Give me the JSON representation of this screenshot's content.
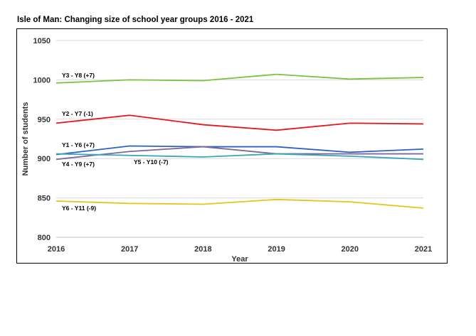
{
  "title": "Isle of Man: Changing size of school year groups 2016 - 2021",
  "chart_data": {
    "type": "line",
    "title": "Isle of Man: Changing size of school year groups 2016 - 2021",
    "xlabel": "Year",
    "ylabel": "Number of students",
    "x": [
      "2016",
      "2017",
      "2018",
      "2019",
      "2020",
      "2021"
    ],
    "ylim": [
      800,
      1050
    ],
    "yticks": [
      800,
      850,
      900,
      950,
      1000,
      1050
    ],
    "grid": true,
    "series": [
      {
        "name": "Y3 - Y8 (+7)",
        "color": "#7dc242",
        "values": [
          996,
          1000,
          999,
          1007,
          1001,
          1003
        ]
      },
      {
        "name": "Y2 - Y7 (-1)",
        "color": "#e8161b",
        "values": [
          945,
          955,
          943,
          936,
          945,
          944
        ]
      },
      {
        "name": "Y1 - Y6 (+7)",
        "color": "#2e5fc9",
        "values": [
          905,
          916,
          915,
          915,
          908,
          912
        ]
      },
      {
        "name": "Y4 - Y9 (+7)",
        "color": "#7d6a9c",
        "values": [
          899,
          909,
          915,
          906,
          906,
          906
        ]
      },
      {
        "name": "Y5 - Y10 (-7)",
        "color": "#3aa6b9",
        "values": [
          906,
          904,
          902,
          906,
          903,
          899
        ]
      },
      {
        "name": "Y6 - Y11 (-9)",
        "color": "#e4c416",
        "values": [
          846,
          843,
          842,
          848,
          845,
          837
        ]
      }
    ]
  }
}
